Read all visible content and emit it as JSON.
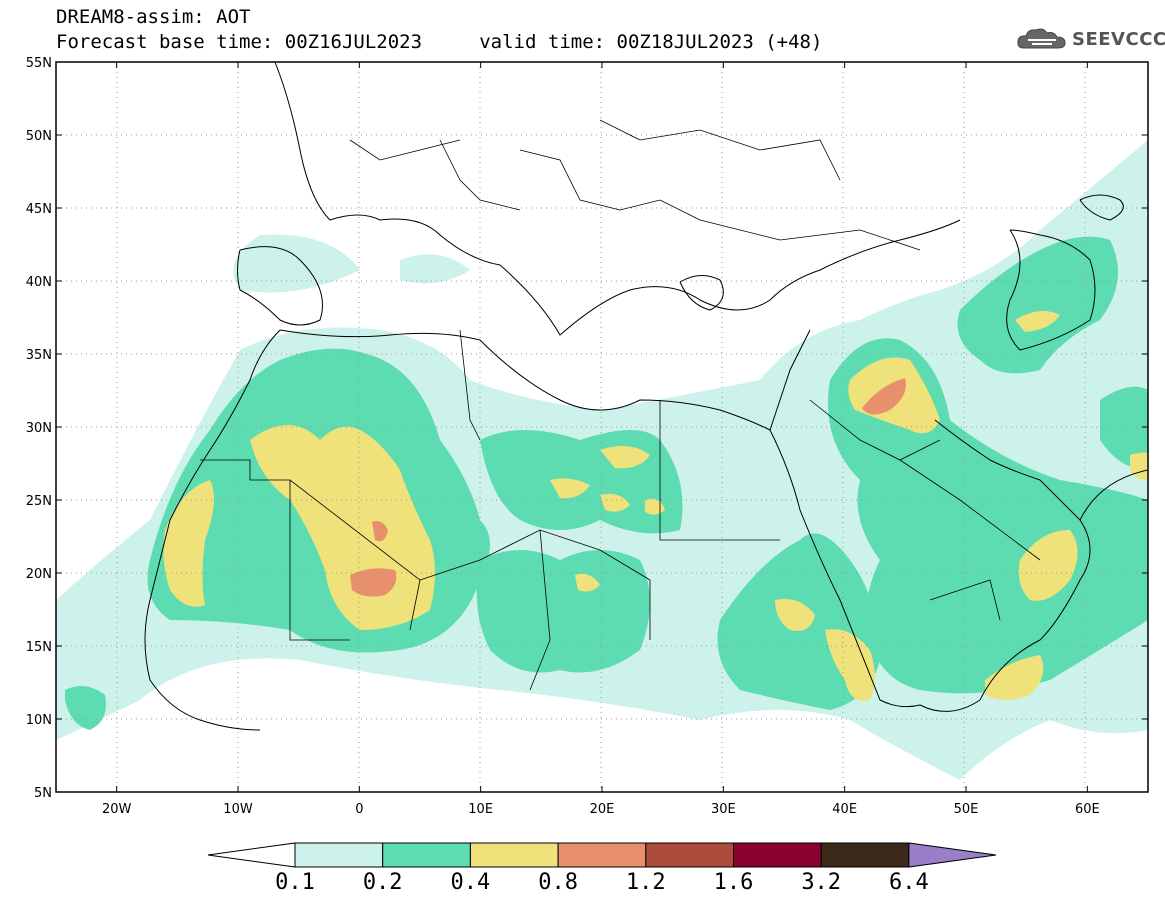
{
  "header": {
    "line1": "DREAM8-assim: AOT",
    "line2": "Forecast base time: 00Z16JUL2023     valid time: 00Z18JUL2023 (+48)"
  },
  "logo": {
    "text": "SEEVCCC",
    "icon": "cloud-icon"
  },
  "map": {
    "projection": "lat-lon",
    "lon_range": [
      -25,
      65
    ],
    "lat_range": [
      5,
      55
    ],
    "grid": true,
    "x_ticks": [
      "20W",
      "10W",
      "0",
      "10E",
      "20E",
      "30E",
      "40E",
      "50E",
      "60E"
    ],
    "x_tick_values": [
      -20,
      -10,
      0,
      10,
      20,
      30,
      40,
      50,
      60
    ],
    "y_ticks": [
      "55N",
      "50N",
      "45N",
      "40N",
      "35N",
      "30N",
      "25N",
      "20N",
      "15N",
      "10N",
      "5N"
    ],
    "y_tick_values": [
      55,
      50,
      45,
      40,
      35,
      30,
      25,
      20,
      15,
      10,
      5
    ]
  },
  "colorbar": {
    "labels": [
      "0.1",
      "0.2",
      "0.4",
      "0.8",
      "1.2",
      "1.6",
      "3.2",
      "6.4"
    ],
    "colors": [
      "#cdf2ec",
      "#5ddcb1",
      "#f0e27a",
      "#e8906c",
      "#ad4c3c",
      "#8a0030",
      "#3a2818",
      "#9a7ec8"
    ],
    "under_color": "#ffffff",
    "over_color": "#9a7ec8"
  }
}
